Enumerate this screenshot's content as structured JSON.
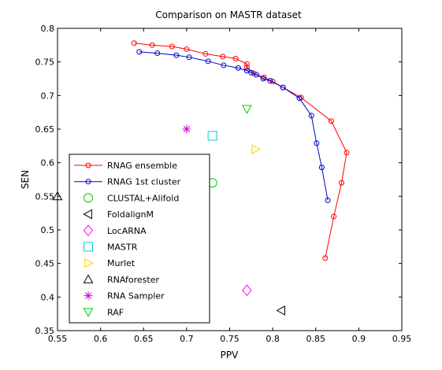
{
  "chart_data": {
    "type": "scatter",
    "title": "Comparison on MASTR dataset",
    "xlabel": "PPV",
    "ylabel": "SEN",
    "xlim": [
      0.55,
      0.95
    ],
    "ylim": [
      0.35,
      0.8
    ],
    "xticks": [
      0.55,
      0.6,
      0.65,
      0.7,
      0.75,
      0.8,
      0.85,
      0.9,
      0.95
    ],
    "yticks": [
      0.35,
      0.4,
      0.45,
      0.5,
      0.55,
      0.6,
      0.65,
      0.7,
      0.75,
      0.8
    ],
    "grid": false,
    "legend_position": "lower-left",
    "series": [
      {
        "name": "RNAG ensemble",
        "kind": "line",
        "marker": "circle",
        "color": "#ff0000",
        "x": [
          0.639,
          0.66,
          0.683,
          0.7,
          0.722,
          0.742,
          0.757,
          0.77,
          0.77,
          0.778,
          0.79,
          0.8,
          0.812,
          0.833,
          0.868,
          0.886,
          0.88,
          0.871,
          0.861
        ],
        "y": [
          0.778,
          0.775,
          0.773,
          0.769,
          0.762,
          0.758,
          0.755,
          0.747,
          0.742,
          0.733,
          0.727,
          0.721,
          0.712,
          0.697,
          0.662,
          0.615,
          0.57,
          0.52,
          0.458
        ]
      },
      {
        "name": "RNAG 1st cluster",
        "kind": "line",
        "marker": "circle",
        "color": "#0000cc",
        "x": [
          0.645,
          0.666,
          0.688,
          0.703,
          0.725,
          0.743,
          0.76,
          0.77,
          0.775,
          0.781,
          0.789,
          0.797,
          0.812,
          0.831,
          0.845,
          0.851,
          0.857,
          0.864
        ],
        "y": [
          0.765,
          0.763,
          0.76,
          0.757,
          0.751,
          0.745,
          0.741,
          0.737,
          0.734,
          0.731,
          0.725,
          0.722,
          0.712,
          0.696,
          0.67,
          0.629,
          0.593,
          0.544
        ]
      },
      {
        "name": "CLUSTAL+Alifold",
        "kind": "point",
        "marker": "circle",
        "color": "#00cc00",
        "x": [
          0.73
        ],
        "y": [
          0.57
        ]
      },
      {
        "name": "FoldalignM",
        "kind": "point",
        "marker": "triangle-left",
        "color": "#000000",
        "x": [
          0.81
        ],
        "y": [
          0.38
        ]
      },
      {
        "name": "LocARNA",
        "kind": "point",
        "marker": "diamond",
        "color": "#ff00ff",
        "x": [
          0.77
        ],
        "y": [
          0.41
        ]
      },
      {
        "name": "MASTR",
        "kind": "point",
        "marker": "square",
        "color": "#00cccc",
        "x": [
          0.73
        ],
        "y": [
          0.64
        ]
      },
      {
        "name": "Murlet",
        "kind": "point",
        "marker": "triangle-right",
        "color": "#ffd400",
        "x": [
          0.78
        ],
        "y": [
          0.62
        ]
      },
      {
        "name": "RNAforester",
        "kind": "point",
        "marker": "triangle-up",
        "color": "#000000",
        "x": [
          0.55
        ],
        "y": [
          0.55
        ]
      },
      {
        "name": "RNA Sampler",
        "kind": "point",
        "marker": "asterisk",
        "color": "#cc00cc",
        "x": [
          0.7
        ],
        "y": [
          0.65
        ]
      },
      {
        "name": "RAF",
        "kind": "point",
        "marker": "triangle-down",
        "color": "#00cc00",
        "x": [
          0.77
        ],
        "y": [
          0.68
        ]
      }
    ]
  }
}
